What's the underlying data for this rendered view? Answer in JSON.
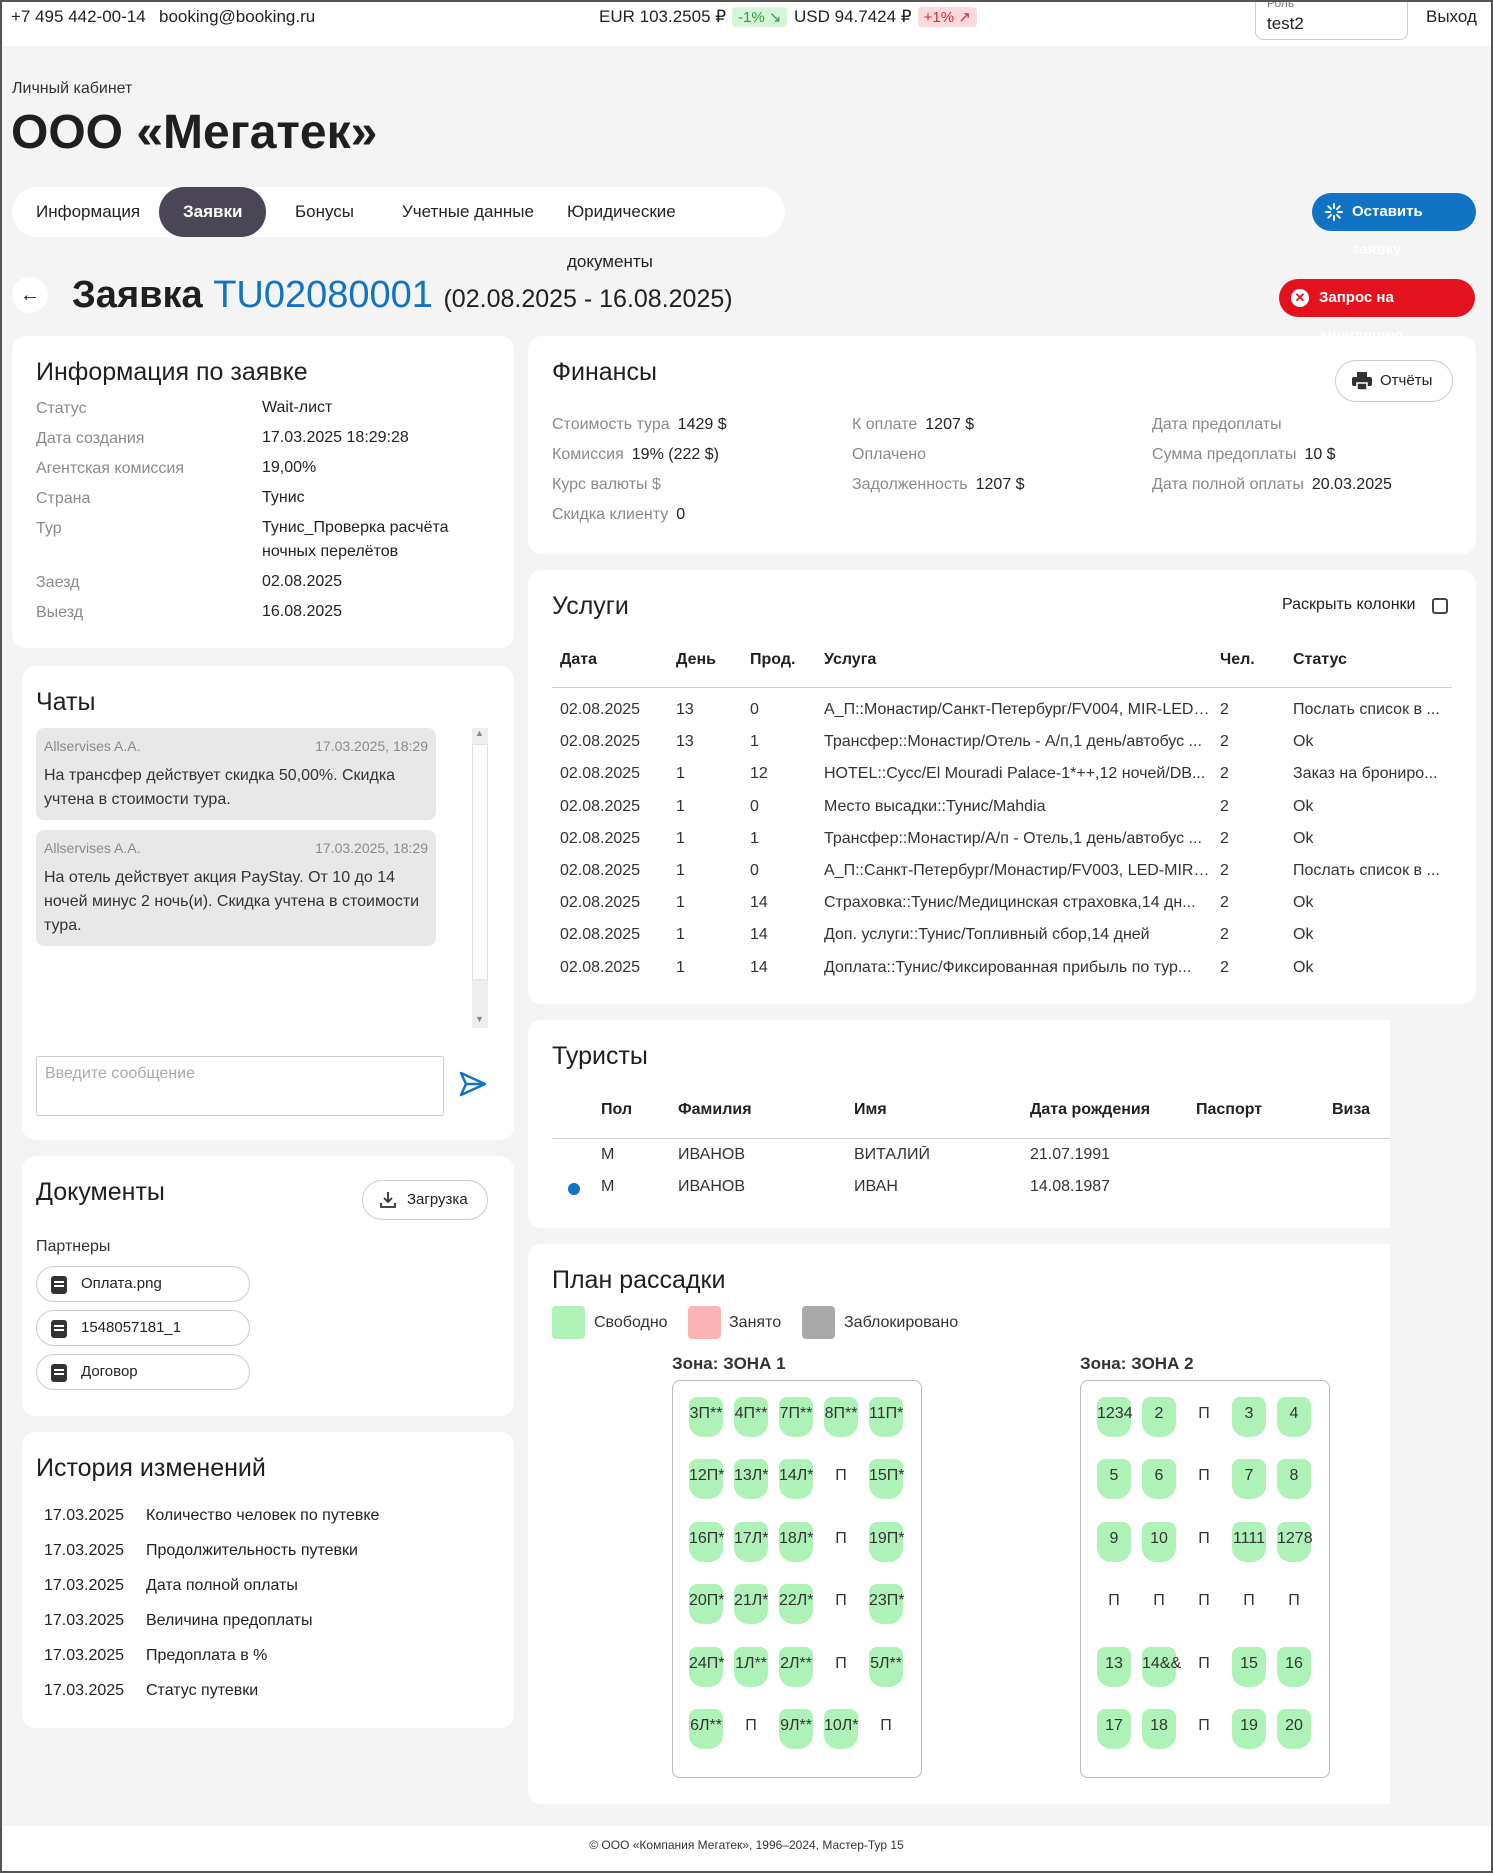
{
  "topbar": {
    "phone": "+7 495 442-00-14",
    "email": "booking@booking.ru",
    "eur": "EUR 103.2505 ₽",
    "eur_change": "-1% ↘",
    "usd": "USD 94.7424 ₽",
    "usd_change": "+1% ↗",
    "role_label": "Роль",
    "role_value": "test2",
    "logout": "Выход"
  },
  "header": {
    "breadcrumb": "Личный кабинет",
    "company": "ООО «Мегатек»",
    "tabs": [
      "Информация",
      "Заявки",
      "Бонусы",
      "Учетные данные",
      "Юридические документы"
    ],
    "new_request": "Оставить заявку"
  },
  "order": {
    "prefix": "Заявка",
    "number": "TU02080001",
    "dates": "(02.08.2025 - 16.08.2025)",
    "cancel": "Запрос на аннуляцию"
  },
  "info": {
    "title": "Информация по заявке",
    "rows": [
      {
        "label": "Статус",
        "value": "Wait-лист"
      },
      {
        "label": "Дата создания",
        "value": "17.03.2025 18:29:28"
      },
      {
        "label": "Агентская комиссия",
        "value": "19,00%"
      },
      {
        "label": "Страна",
        "value": "Тунис"
      },
      {
        "label": "Тур",
        "value": "Тунис_Проверка расчёта ночных перелётов"
      },
      {
        "label": "Заезд",
        "value": "02.08.2025"
      },
      {
        "label": "Выезд",
        "value": "16.08.2025"
      }
    ]
  },
  "finance": {
    "title": "Финансы",
    "reports": "Отчёты",
    "col1": [
      {
        "label": "Стоимость тура",
        "value": "1429 $"
      },
      {
        "label": "Комиссия",
        "value": "19% (222 $)"
      },
      {
        "label": "Курс валюты $",
        "value": ""
      },
      {
        "label": "Скидка клиенту",
        "value": "0"
      }
    ],
    "col2": [
      {
        "label": "К оплате",
        "value": "1207 $"
      },
      {
        "label": "Оплачено",
        "value": ""
      },
      {
        "label": "Задолженность",
        "value": "1207 $"
      }
    ],
    "col3": [
      {
        "label": "Дата предоплаты",
        "value": ""
      },
      {
        "label": "Сумма предоплаты",
        "value": "10 $"
      },
      {
        "label": "Дата полной оплаты",
        "value": "20.03.2025"
      }
    ]
  },
  "services": {
    "title": "Услуги",
    "expand_label": "Раскрыть колонки",
    "headers": [
      "Дата",
      "День",
      "Прод.",
      "Услуга",
      "Чел.",
      "Статус"
    ],
    "rows": [
      [
        "02.08.2025",
        "13",
        "0",
        "А_П::Монастир/Санкт-Петербург/FV004, MIR-LED,...",
        "2",
        "Послать список в ..."
      ],
      [
        "02.08.2025",
        "13",
        "1",
        "Трансфер::Монастир/Отель - А/п,1 день/автобус ...",
        "2",
        "Ok"
      ],
      [
        "02.08.2025",
        "1",
        "12",
        "HOTEL::Сусс/El Mouradi Palace-1*++,12 ночей/DB...",
        "2",
        "Заказ на брониро..."
      ],
      [
        "02.08.2025",
        "1",
        "0",
        "Место высадки::Тунис/Mahdia",
        "2",
        "Ok"
      ],
      [
        "02.08.2025",
        "1",
        "1",
        "Трансфер::Монастир/А/п - Отель,1 день/автобус ...",
        "2",
        "Ok"
      ],
      [
        "02.08.2025",
        "1",
        "0",
        "А_П::Санкт-Петербург/Монастир/FV003, LED-MIR,...",
        "2",
        "Послать список в ..."
      ],
      [
        "02.08.2025",
        "1",
        "14",
        "Страховка::Тунис/Медицинская страховка,14 дн...",
        "2",
        "Ok"
      ],
      [
        "02.08.2025",
        "1",
        "14",
        "Доп. услуги::Тунис/Топливный сбор,14 дней",
        "2",
        "Ok"
      ],
      [
        "02.08.2025",
        "1",
        "14",
        "Доплата::Тунис/Фиксированная прибыль по тур...",
        "2",
        "Ok"
      ]
    ]
  },
  "chats": {
    "title": "Чаты",
    "messages": [
      {
        "author": "Allservises A.A.",
        "time": "17.03.2025, 18:29",
        "text": "На трансфер действует скидка 50,00%. Скидка учтена в стоимости тура."
      },
      {
        "author": "Allservises A.A.",
        "time": "17.03.2025, 18:29",
        "text": "На отель действует акция PayStay. От 10 до 14 ночей минус 2 ночь(и). Скидка учтена в стоимости тура."
      }
    ],
    "placeholder": "Введите сообщение"
  },
  "tourists": {
    "title": "Туристы",
    "headers": [
      "Пол",
      "Фамилия",
      "Имя",
      "Дата рождения",
      "Паспорт",
      "Виза"
    ],
    "rows": [
      [
        "М",
        "ИВАНОВ",
        "ВИТАЛИЙ",
        "21.07.1991",
        "",
        ""
      ],
      [
        "М",
        "ИВАНОВ",
        "ИВАН",
        "14.08.1987",
        "",
        ""
      ]
    ]
  },
  "documents": {
    "title": "Документы",
    "upload": "Загрузка",
    "section": "Партнеры",
    "files": [
      "Оплата.png",
      "1548057181_1",
      "Договор"
    ]
  },
  "history": {
    "title": "История изменений",
    "rows": [
      {
        "date": "17.03.2025",
        "text": "Количество человек по путевке"
      },
      {
        "date": "17.03.2025",
        "text": "Продолжительность путевки"
      },
      {
        "date": "17.03.2025",
        "text": "Дата полной оплаты"
      },
      {
        "date": "17.03.2025",
        "text": "Величина предоплаты"
      },
      {
        "date": "17.03.2025",
        "text": "Предоплата в %"
      },
      {
        "date": "17.03.2025",
        "text": "Статус путевки"
      }
    ]
  },
  "seating": {
    "title": "План рассадки",
    "legend": {
      "free": "Свободно",
      "taken": "Занято",
      "blocked": "Заблокировано"
    },
    "colors": {
      "free": "#aef2b8",
      "taken": "#fcb3b3",
      "blocked": "#aaaaaa"
    },
    "zone1": {
      "title": "Зона: ЗОНА 1",
      "rows": [
        [
          "3П**",
          "4П**",
          "7П**",
          "8П**",
          "11П*"
        ],
        [
          "12П*",
          "13Л*",
          "14Л*",
          "П",
          "15П*"
        ],
        [
          "16П*",
          "17Л*",
          "18Л*",
          "П",
          "19П*"
        ],
        [
          "20П*",
          "21Л*",
          "22Л*",
          "П",
          "23П*"
        ],
        [
          "24П*",
          "1Л**",
          "2Л**",
          "П",
          "5Л**"
        ],
        [
          "6Л**",
          "П",
          "9Л**",
          "10Л*",
          "П"
        ]
      ]
    },
    "zone2": {
      "title": "Зона: ЗОНА 2",
      "rows": [
        [
          "1234",
          "2",
          "П",
          "3",
          "4"
        ],
        [
          "5",
          "6",
          "П",
          "7",
          "8"
        ],
        [
          "9",
          "10",
          "П",
          "1111",
          "1278"
        ],
        [
          "П",
          "П",
          "П",
          "П",
          "П"
        ],
        [
          "13",
          "14&&",
          "П",
          "15",
          "16"
        ],
        [
          "17",
          "18",
          "П",
          "19",
          "20"
        ]
      ]
    }
  },
  "footer": "© ООО «Компания Мегатек», 1996–2024, Мастер-Тур 15"
}
